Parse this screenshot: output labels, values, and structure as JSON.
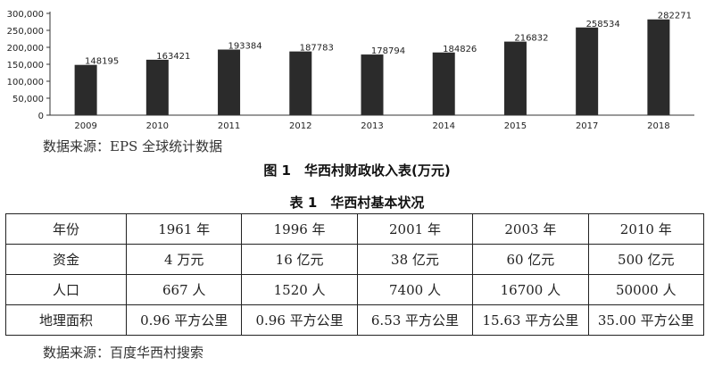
{
  "chart_data": {
    "type": "bar",
    "categories": [
      "2009",
      "2010",
      "2011",
      "2012",
      "2013",
      "2014",
      "2015",
      "2017",
      "2018"
    ],
    "values": [
      148195,
      163421,
      193384,
      187783,
      178794,
      184826,
      216832,
      258534,
      282271
    ],
    "data_labels": [
      "148195",
      "163421",
      "193384",
      "187783",
      "178794",
      "184826",
      "216832",
      "258534",
      "282271"
    ],
    "ylim": [
      0,
      300000
    ],
    "yticks": [
      0,
      50000,
      100000,
      150000,
      200000,
      250000,
      300000
    ],
    "ytick_labels": [
      "0",
      "50,000",
      "100,000",
      "150,000",
      "200,000",
      "250,000",
      "300,000"
    ],
    "bar_color": "#2b2b2b",
    "grid": false
  },
  "source_chart": "数据来源：EPS 全球统计数据",
  "figure_caption": "图 1　华西村财政收入表(万元)",
  "table_caption": "表 1　华西村基本状况",
  "table": {
    "rows": [
      [
        "年份",
        "1961 年",
        "1996 年",
        "2001 年",
        "2003 年",
        "2010 年"
      ],
      [
        "资金",
        "4 万元",
        "16 亿元",
        "38 亿元",
        "60 亿元",
        "500 亿元"
      ],
      [
        "人口",
        "667 人",
        "1520 人",
        "7400 人",
        "16700 人",
        "50000 人"
      ],
      [
        "地理面积",
        "0.96 平方公里",
        "0.96 平方公里",
        "6.53 平方公里",
        "15.63 平方公里",
        "35.00 平方公里"
      ]
    ]
  },
  "source_table": "数据来源：百度华西村搜索"
}
